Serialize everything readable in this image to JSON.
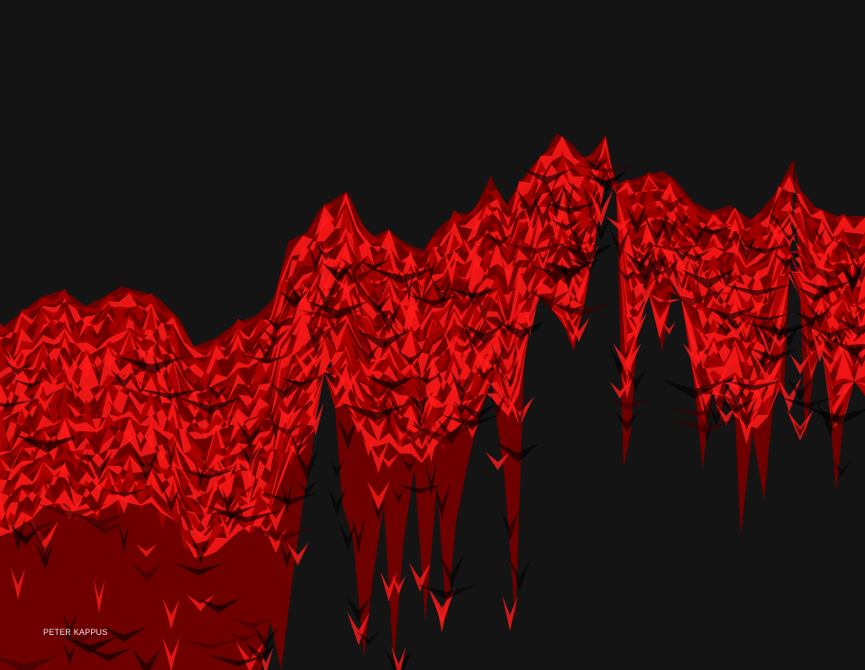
{
  "artwork": {
    "credit": "PETER KAPPUS"
  },
  "colors": {
    "background": "#141414",
    "palette": [
      "#3a0000",
      "#6e0000",
      "#a30000",
      "#cc0000",
      "#e00505",
      "#ff1a1a"
    ],
    "credit_text": "#e8e8e8"
  }
}
